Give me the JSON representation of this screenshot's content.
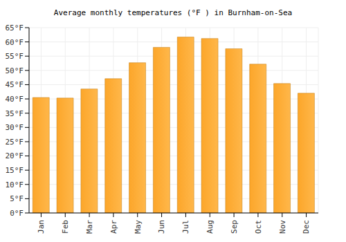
{
  "chart_data": {
    "type": "bar",
    "title": "Average monthly temperatures (°F ) in Burnham-on-Sea",
    "categories": [
      "Jan",
      "Feb",
      "Mar",
      "Apr",
      "May",
      "Jun",
      "Jul",
      "Aug",
      "Sep",
      "Oct",
      "Nov",
      "Dec"
    ],
    "values": [
      40.5,
      40.3,
      43.5,
      47.1,
      52.7,
      58.1,
      61.7,
      61.2,
      57.6,
      52.2,
      45.4,
      42.0
    ],
    "color": "#fca62a",
    "ylim": [
      0,
      65
    ],
    "yticks": [
      {
        "value": 0,
        "label": "0°F"
      },
      {
        "value": 5,
        "label": "5°F"
      },
      {
        "value": 10,
        "label": "10°F"
      },
      {
        "value": 15,
        "label": "15°F"
      },
      {
        "value": 20,
        "label": "20°F"
      },
      {
        "value": 25,
        "label": "25°F"
      },
      {
        "value": 30,
        "label": "30°F"
      },
      {
        "value": 35,
        "label": "35°F"
      },
      {
        "value": 40,
        "label": "40°F"
      },
      {
        "value": 45,
        "label": "45°F"
      },
      {
        "value": 50,
        "label": "50°F"
      },
      {
        "value": 55,
        "label": "55°F"
      },
      {
        "value": 60,
        "label": "60°F"
      },
      {
        "value": 65,
        "label": "65°F"
      }
    ],
    "grid": true
  }
}
